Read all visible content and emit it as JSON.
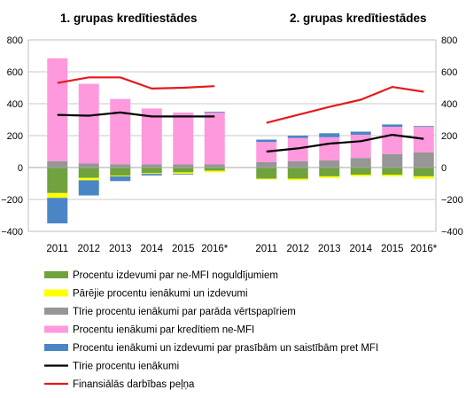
{
  "chart_data": {
    "type": "bar",
    "panels": [
      {
        "title": "1. grupas kredītiestādes",
        "categories": [
          "2011",
          "2012",
          "2013",
          "2014",
          "2015",
          "2016*"
        ],
        "stacked_series": [
          {
            "name": "Procentu izdevumi par ne-MFI noguldījumiem",
            "color": "#70a23e",
            "values": [
              -160,
              -65,
              -50,
              -35,
              -30,
              -20
            ]
          },
          {
            "name": "Pārējie procentu ienākumi un izdevumi",
            "color": "#ffff00",
            "values": [
              -30,
              -15,
              -5,
              -5,
              -10,
              -10
            ]
          },
          {
            "name": "Tīrie procentu ienākumi par parāda vērtspapīriem",
            "color": "#969696",
            "values": [
              40,
              25,
              20,
              20,
              20,
              20
            ]
          },
          {
            "name": "Procentu ienākumi par kredītiem ne-MFI",
            "color": "#ff99dd",
            "values": [
              645,
              500,
              410,
              350,
              325,
              325
            ]
          },
          {
            "name": "Procentu ienākumi un izdevumi par prasībām un saistībām pret MFI",
            "color": "#4a86c5",
            "values": [
              -160,
              -95,
              -30,
              -10,
              -5,
              5
            ]
          }
        ],
        "line_series": [
          {
            "name": "Tīrie procentu ienākumi",
            "color": "#000000",
            "values": [
              330,
              325,
              345,
              320,
              320,
              320
            ]
          },
          {
            "name": "Finansiālās darbības peļņa",
            "color": "#e31a1c",
            "values": [
              530,
              565,
              565,
              495,
              500,
              510
            ]
          }
        ]
      },
      {
        "title": "2. grupas kredītiestādes",
        "categories": [
          "2011",
          "2012",
          "2013",
          "2014",
          "2015",
          "2016*"
        ],
        "stacked_series": [
          {
            "name": "Procentu izdevumi par ne-MFI noguldījumiem",
            "color": "#70a23e",
            "values": [
              -70,
              -70,
              -55,
              -45,
              -45,
              -55
            ]
          },
          {
            "name": "Pārējie procentu ienākumi un izdevumi",
            "color": "#ffff00",
            "values": [
              -5,
              -10,
              -10,
              -10,
              -10,
              -15
            ]
          },
          {
            "name": "Tīrie procentu ienākumi par parāda vērtspapīriem",
            "color": "#969696",
            "values": [
              35,
              40,
              45,
              60,
              85,
              95
            ]
          },
          {
            "name": "Procentu ienākumi par kredītiem ne-MFI",
            "color": "#ff99dd",
            "values": [
              125,
              145,
              145,
              145,
              170,
              160
            ]
          },
          {
            "name": "Procentu ienākumi un izdevumi par prasībām un saistībām pret MFI",
            "color": "#4a86c5",
            "values": [
              15,
              15,
              25,
              20,
              15,
              5
            ]
          }
        ],
        "line_series": [
          {
            "name": "Tīrie procentu ienākumi",
            "color": "#000000",
            "values": [
              100,
              120,
              150,
              165,
              205,
              180
            ]
          },
          {
            "name": "Finansiālās darbības peļņa",
            "color": "#e31a1c",
            "values": [
              280,
              330,
              380,
              425,
              505,
              475
            ]
          }
        ]
      }
    ],
    "ylim": [
      -400,
      800
    ],
    "yticks": [
      "800",
      "600",
      "400",
      "200",
      "0",
      "−200",
      "−400"
    ],
    "grid": true,
    "legend_position": "bottom",
    "legend": [
      {
        "label": "Procentu izdevumi par ne-MFI noguldījumiem",
        "color": "#70a23e",
        "kind": "box"
      },
      {
        "label": "Pārējie procentu ienākumi un izdevumi",
        "color": "#ffff00",
        "kind": "box"
      },
      {
        "label": "Tīrie procentu ienākumi par parāda vērtspapīriem",
        "color": "#969696",
        "kind": "box"
      },
      {
        "label": "Procentu ienākumi par kredītiem ne-MFI",
        "color": "#ff99dd",
        "kind": "box"
      },
      {
        "label": "Procentu ienākumi un izdevumi par prasībām un saistībām pret MFI",
        "color": "#4a86c5",
        "kind": "box"
      },
      {
        "label": "Tīrie procentu ienākumi",
        "color": "#000000",
        "kind": "line"
      },
      {
        "label": "Finansiālās darbības peļņa",
        "color": "#e31a1c",
        "kind": "line"
      }
    ]
  }
}
